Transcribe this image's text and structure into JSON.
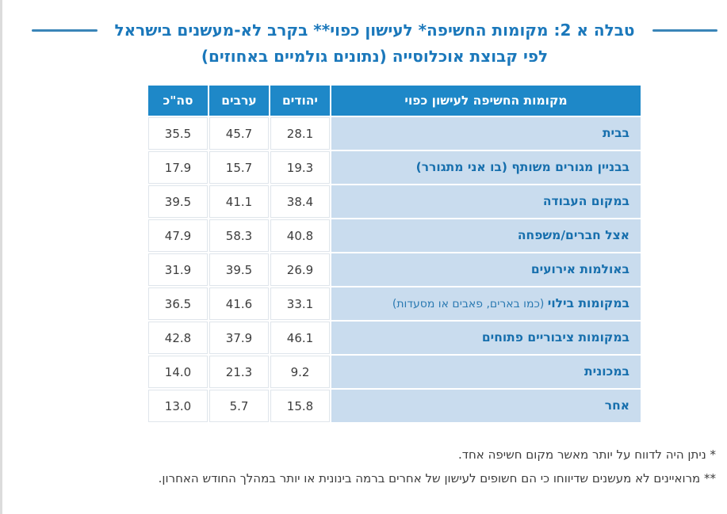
{
  "title": {
    "line1": "טבלה א 2: מקומות החשיפה* לעישון כפוי** בקרב לא-מעשנים בישראל",
    "line2": "לפי קבוצת אוכלוסייה (נתונים גולמיים באחוזים)"
  },
  "colors": {
    "header_bg": "#1e88c8",
    "row_label_bg": "#c9dcee",
    "title_blue": "#1b78bb",
    "label_blue": "#176fad",
    "dash_blue": "#3a85b8"
  },
  "table": {
    "header": {
      "label": "מקומות החשיפה לעישון כפוי",
      "jews": "יהודים",
      "arabs": "ערבים",
      "total": "סה\"כ"
    },
    "rows": [
      {
        "label": "בבית",
        "note": "",
        "jews": "28.1",
        "arabs": "45.7",
        "total": "35.5"
      },
      {
        "label": "בבניין מגורים משותף (בו אני מתגורר)",
        "note": "",
        "jews": "19.3",
        "arabs": "15.7",
        "total": "17.9"
      },
      {
        "label": "במקום העבודה",
        "note": "",
        "jews": "38.4",
        "arabs": "41.1",
        "total": "39.5"
      },
      {
        "label": "אצל חברים/משפחה",
        "note": "",
        "jews": "40.8",
        "arabs": "58.3",
        "total": "47.9"
      },
      {
        "label": "באולמות אירועים",
        "note": "",
        "jews": "26.9",
        "arabs": "39.5",
        "total": "31.9"
      },
      {
        "label": "במקומות בילוי",
        "note": "(כמו בארים, פאבים או מסעדות)",
        "jews": "33.1",
        "arabs": "41.6",
        "total": "36.5"
      },
      {
        "label": "במקומות ציבוריים פתוחים",
        "note": "",
        "jews": "46.1",
        "arabs": "37.9",
        "total": "42.8"
      },
      {
        "label": "במכונית",
        "note": "",
        "jews": "9.2",
        "arabs": "21.3",
        "total": "14.0"
      },
      {
        "label": "אחר",
        "note": "",
        "jews": "15.8",
        "arabs": "5.7",
        "total": "13.0"
      }
    ]
  },
  "footnotes": {
    "line1": "* ניתן היה לדווח על יותר מאשר מקום חשיפה אחד.",
    "line2": "** מרואיינים לא מעשנים שדיווחו כי הם חשופים לעישון של אחרים ברמה בינונית או יותר במהלך החודש האחרון."
  },
  "chart_data": {
    "type": "table",
    "title": "טבלה א 2: מקומות החשיפה לעישון כפוי בקרב לא-מעשנים בישראל לפי קבוצת אוכלוסייה (נתונים גולמיים באחוזים)",
    "categories": [
      "בבית",
      "בבניין מגורים משותף (בו אני מתגורר)",
      "במקום העבודה",
      "אצל חברים/משפחה",
      "באולמות אירועים",
      "במקומות בילוי (כמו בארים, פאבים או מסעדות)",
      "במקומות ציבוריים פתוחים",
      "במכונית",
      "אחר"
    ],
    "series": [
      {
        "name": "יהודים",
        "values": [
          28.1,
          19.3,
          38.4,
          40.8,
          26.9,
          33.1,
          46.1,
          9.2,
          15.8
        ]
      },
      {
        "name": "ערבים",
        "values": [
          45.7,
          15.7,
          41.1,
          58.3,
          39.5,
          41.6,
          37.9,
          21.3,
          5.7
        ]
      },
      {
        "name": "סה\"כ",
        "values": [
          35.5,
          17.9,
          39.5,
          47.9,
          31.9,
          36.5,
          42.8,
          14.0,
          13.0
        ]
      }
    ]
  }
}
